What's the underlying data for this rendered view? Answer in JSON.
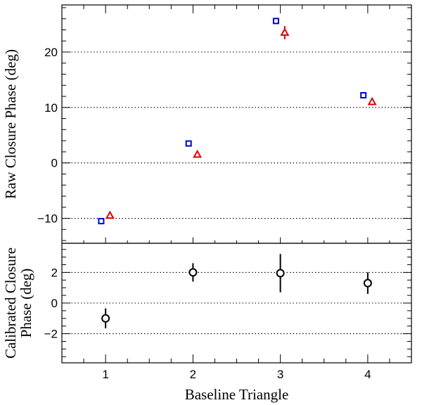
{
  "chart_data": [
    {
      "type": "scatter",
      "panel": "top",
      "ylabel": "Raw Closure Phase (deg)",
      "xlim": [
        0.5,
        4.5
      ],
      "ylim": [
        -14.5,
        28.5
      ],
      "yticks_major": [
        -10,
        0,
        10,
        20
      ],
      "ytick_labels": [
        "−10",
        "0",
        "10",
        "20"
      ],
      "grid": "dotted horizontal at major ticks",
      "series": [
        {
          "name": "series-1",
          "marker": "square",
          "color": "#0000dd",
          "x": [
            0.95,
            1.95,
            2.95,
            3.95
          ],
          "y": [
            -10.5,
            3.5,
            25.6,
            12.2
          ],
          "yerr": [
            0.3,
            0.3,
            0.3,
            0.3
          ]
        },
        {
          "name": "series-2",
          "marker": "triangle",
          "color": "#dd0000",
          "x": [
            1.05,
            2.05,
            3.05,
            4.05
          ],
          "y": [
            -9.5,
            1.5,
            23.5,
            11.0
          ],
          "yerr": [
            0.4,
            0.4,
            1.2,
            0.6
          ]
        }
      ]
    },
    {
      "type": "scatter",
      "panel": "bottom",
      "ylabel_lines": [
        "Calibrated Closure",
        "Phase (deg)"
      ],
      "xlabel": "Baseline Triangle",
      "xlim": [
        0.5,
        4.5
      ],
      "ylim": [
        -3.9,
        3.9
      ],
      "xticks": [
        1,
        2,
        3,
        4
      ],
      "xtick_labels": [
        "1",
        "2",
        "3",
        "4"
      ],
      "yticks_major": [
        -2,
        0,
        2
      ],
      "ytick_labels": [
        "−2",
        "0",
        "2"
      ],
      "grid": "dotted horizontal at major ticks",
      "series": [
        {
          "name": "calibrated",
          "marker": "circle",
          "color": "#000000",
          "x": [
            1,
            2,
            3,
            4
          ],
          "y": [
            -1.0,
            2.0,
            1.95,
            1.3
          ],
          "yerr": [
            0.65,
            0.6,
            1.25,
            0.7
          ]
        }
      ]
    }
  ]
}
